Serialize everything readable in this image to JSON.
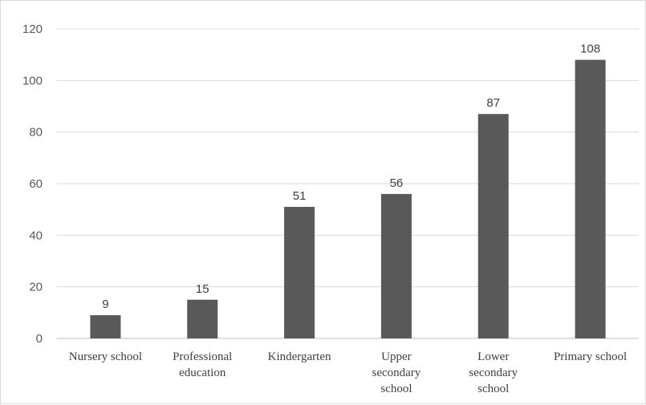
{
  "chart_data": {
    "type": "bar",
    "title": "",
    "xlabel": "",
    "ylabel": "",
    "categories": [
      [
        "Nursery school"
      ],
      [
        "Professional",
        "education"
      ],
      [
        "Kindergarten"
      ],
      [
        "Upper",
        "secondary",
        "school"
      ],
      [
        "Lower",
        "secondary",
        "school"
      ],
      [
        "Primary school"
      ]
    ],
    "values": [
      9,
      15,
      51,
      56,
      87,
      108
    ],
    "ylim": [
      0,
      120
    ],
    "yticks": [
      0,
      20,
      40,
      60,
      80,
      100,
      120
    ],
    "grid": true,
    "legend": "none",
    "data_labels": true,
    "colors": {
      "bar": "#595959",
      "grid": "#d9d9d9",
      "text": "#404040"
    }
  }
}
